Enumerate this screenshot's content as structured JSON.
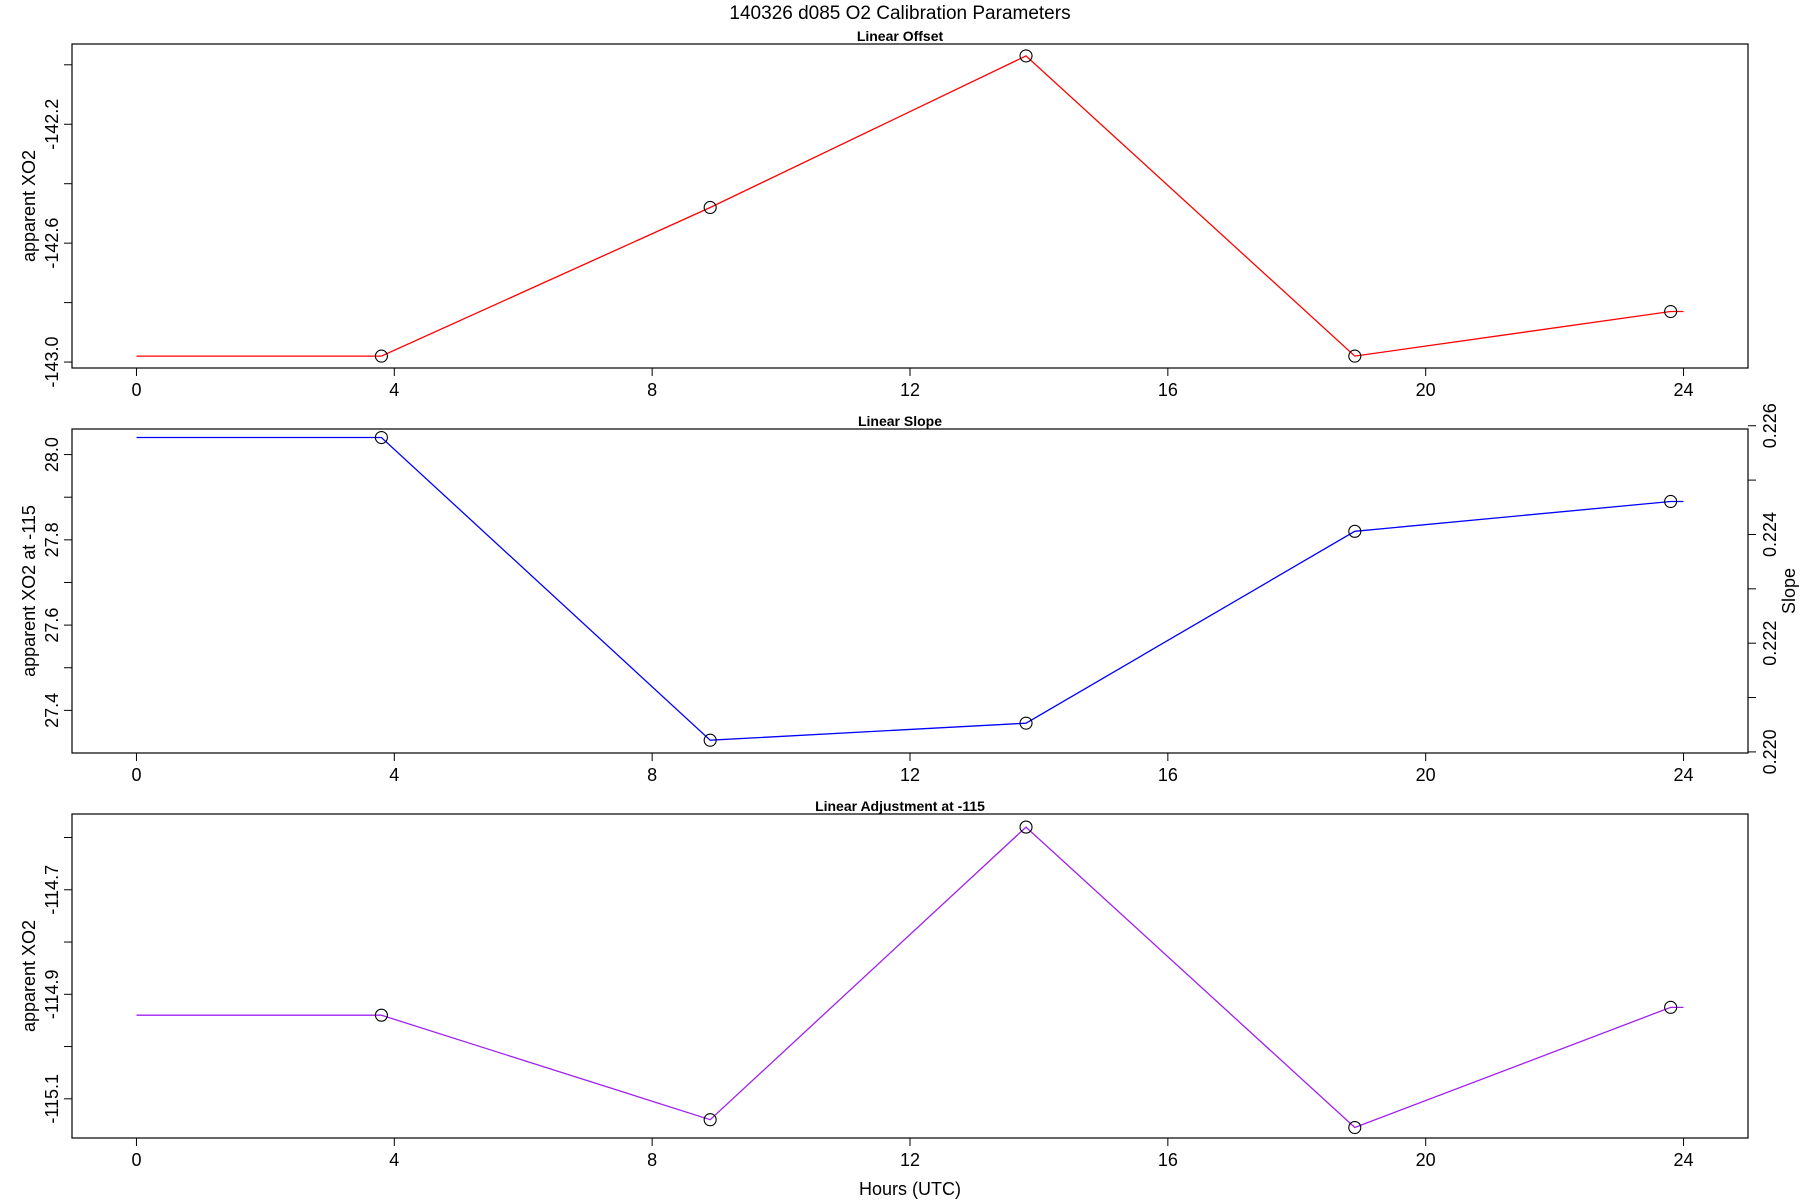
{
  "title": "140326   d085   O2 Calibration Parameters",
  "xlabel": "Hours (UTC)",
  "colors": {
    "offset": "#ff0000",
    "slope": "#0000ff",
    "adjustment": "#a020f0",
    "markers": "#000000"
  },
  "chart_data": [
    {
      "type": "line",
      "title": "Linear Offset",
      "ylabel": "apparent XO2",
      "x": [
        3.8,
        8.9,
        13.8,
        18.9,
        23.8
      ],
      "line_start_x": 0,
      "line_end_x": 24,
      "values": [
        -142.98,
        -142.48,
        -141.97,
        -142.98,
        -142.83
      ],
      "xlim": [
        -1,
        25
      ],
      "ylim": [
        -143.02,
        -141.93
      ],
      "xticks": [
        0,
        4,
        8,
        12,
        16,
        20,
        24
      ],
      "yticks": [
        -143.0,
        -142.8,
        -142.6,
        -142.4,
        -142.2,
        -142.0
      ],
      "ytick_labels": [
        "-143.0",
        "",
        "-142.6",
        "",
        "-142.2",
        ""
      ]
    },
    {
      "type": "line",
      "title": "Linear Slope",
      "ylabel": "apparent XO2 at -115",
      "y2label": "Slope",
      "x": [
        3.8,
        8.9,
        13.8,
        18.9,
        23.8
      ],
      "line_start_x": 0,
      "line_end_x": 24,
      "values": [
        28.04,
        27.33,
        27.37,
        27.82,
        27.89
      ],
      "xlim": [
        -1,
        25
      ],
      "ylim": [
        27.3,
        28.06
      ],
      "xticks": [
        0,
        4,
        8,
        12,
        16,
        20,
        24
      ],
      "yticks": [
        27.4,
        27.5,
        27.6,
        27.7,
        27.8,
        27.9,
        28.0
      ],
      "ytick_labels": [
        "27.4",
        "",
        "27.6",
        "",
        "27.8",
        "",
        "28.0"
      ],
      "y2lim": [
        0.21998,
        0.22594
      ],
      "y2ticks": [
        0.22,
        0.221,
        0.222,
        0.223,
        0.224,
        0.225,
        0.226
      ],
      "y2tick_labels": [
        "0.220",
        "",
        "0.222",
        "",
        "0.224",
        "",
        "0.226"
      ]
    },
    {
      "type": "line",
      "title": "Linear Adjustment at -115",
      "ylabel": "apparent XO2",
      "x": [
        3.8,
        8.9,
        13.8,
        18.9,
        23.8
      ],
      "line_start_x": 0,
      "line_end_x": 24,
      "values": [
        -114.94,
        -115.14,
        -114.58,
        -115.155,
        -114.925
      ],
      "xlim": [
        -1,
        25
      ],
      "ylim": [
        -115.175,
        -114.555
      ],
      "xticks": [
        0,
        4,
        8,
        12,
        16,
        20,
        24
      ],
      "yticks": [
        -115.1,
        -115.0,
        -114.9,
        -114.8,
        -114.7,
        -114.6
      ],
      "ytick_labels": [
        "-115.1",
        "",
        "-114.9",
        "",
        "-114.7",
        ""
      ]
    }
  ]
}
